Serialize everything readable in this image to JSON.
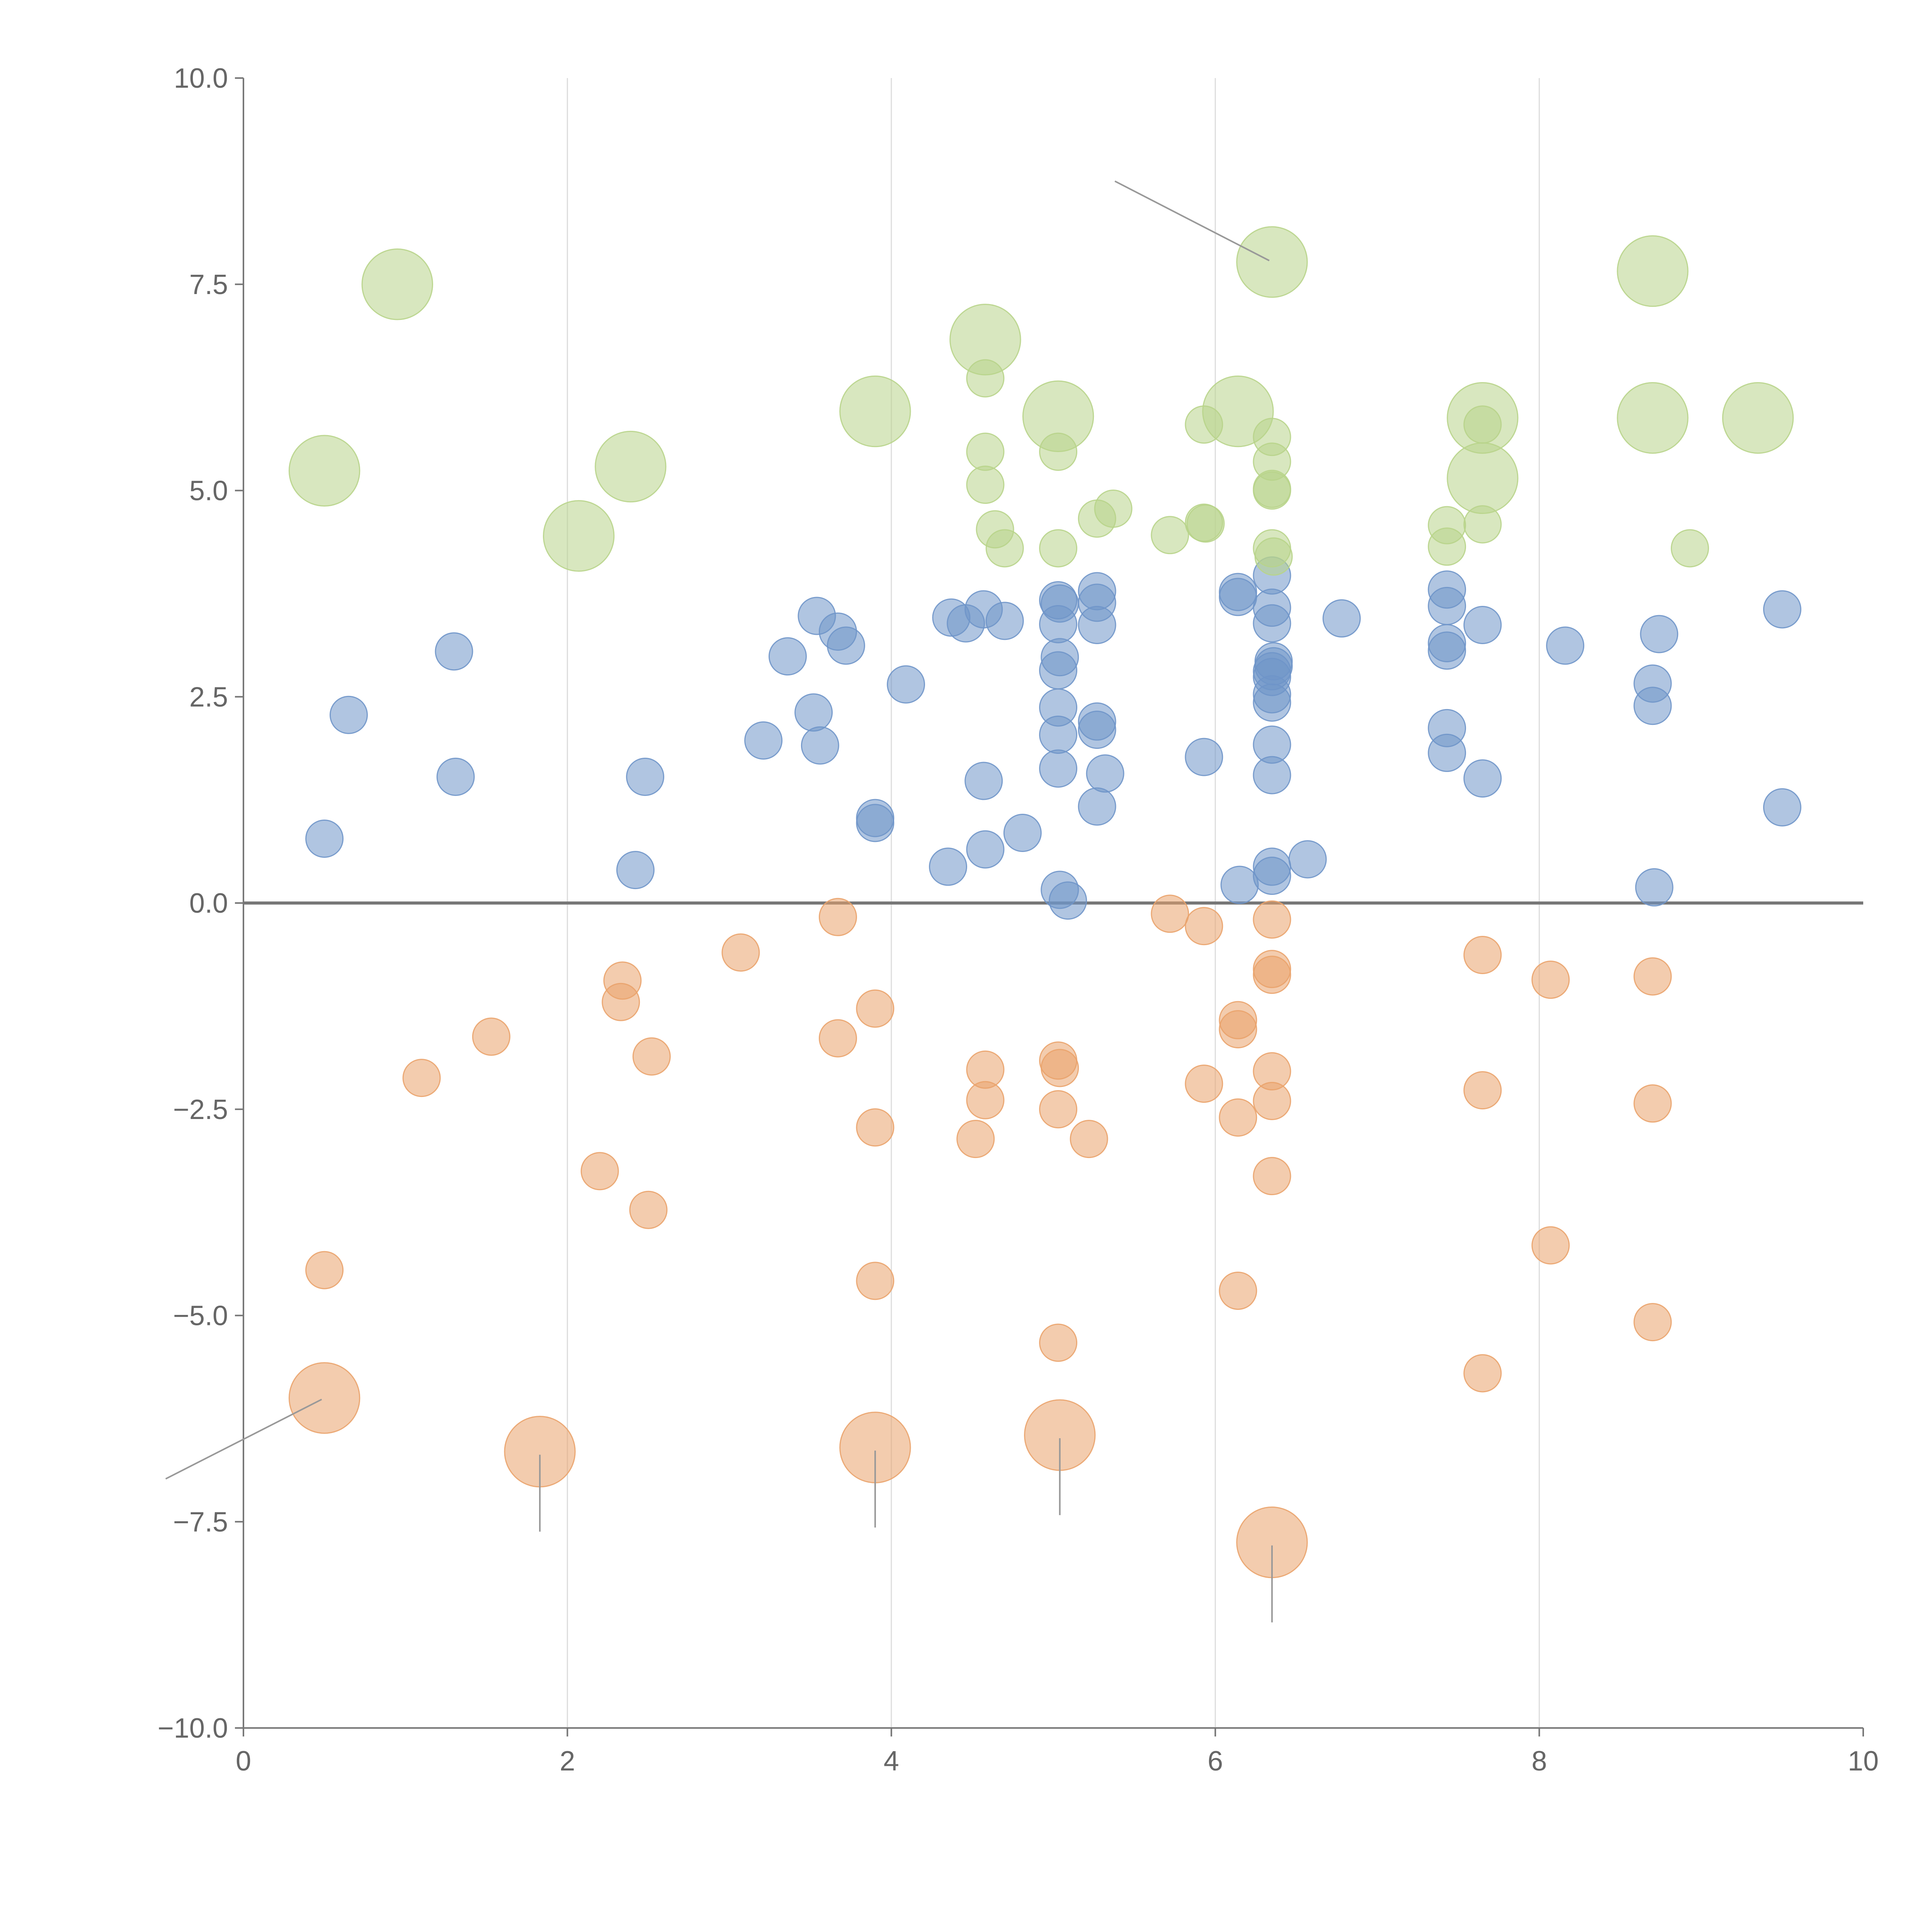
{
  "chart_data": {
    "type": "scatter",
    "title": "",
    "xlabel": "",
    "ylabel": "",
    "xlim": [
      0,
      10
    ],
    "ylim": [
      -10,
      10
    ],
    "x_ticks": [
      0,
      2,
      4,
      6,
      8,
      10
    ],
    "x_tick_labels": [
      "0",
      "2",
      "4",
      "6",
      "8",
      "10"
    ],
    "y_ticks": [
      -10,
      -7.5,
      -5,
      -2.5,
      0,
      2.5,
      5,
      7.5,
      10
    ],
    "y_tick_labels": [
      "−10.0",
      "−7.5",
      "−5.0",
      "−2.5",
      "0.0",
      "2.5",
      "5.0",
      "7.5",
      "10.0"
    ],
    "vertical_grid_at": [
      2,
      4,
      6,
      8
    ],
    "zero_line_at": 0,
    "series": [
      {
        "name": "blue",
        "color": "#6f95c9",
        "size": 1,
        "points": [
          [
            0.5,
            0.78
          ],
          [
            0.65,
            2.28
          ],
          [
            1.3,
            3.05
          ],
          [
            1.31,
            1.53
          ],
          [
            2.42,
            0.4
          ],
          [
            2.48,
            1.53
          ],
          [
            3.21,
            1.97
          ],
          [
            3.36,
            2.99
          ],
          [
            3.52,
            2.31
          ],
          [
            3.54,
            3.48
          ],
          [
            3.56,
            1.91
          ],
          [
            3.67,
            3.29
          ],
          [
            3.72,
            3.12
          ],
          [
            3.9,
            1.03
          ],
          [
            3.9,
            0.97
          ],
          [
            4.09,
            2.65
          ],
          [
            4.35,
            0.44
          ],
          [
            4.37,
            3.46
          ],
          [
            4.46,
            3.39
          ],
          [
            4.57,
            3.56
          ],
          [
            4.57,
            1.48
          ],
          [
            4.58,
            0.65
          ],
          [
            4.7,
            3.42
          ],
          [
            4.81,
            0.85
          ],
          [
            5.03,
            3.67
          ],
          [
            5.04,
            3.63
          ],
          [
            5.03,
            3.38
          ],
          [
            5.04,
            2.98
          ],
          [
            5.03,
            2.82
          ],
          [
            5.03,
            2.37
          ],
          [
            5.03,
            2.04
          ],
          [
            5.03,
            1.63
          ],
          [
            5.04,
            0.16
          ],
          [
            5.09,
            0.03
          ],
          [
            5.27,
            3.78
          ],
          [
            5.27,
            3.64
          ],
          [
            5.27,
            3.37
          ],
          [
            5.27,
            2.2
          ],
          [
            5.27,
            2.1
          ],
          [
            5.32,
            1.57
          ],
          [
            5.27,
            1.17
          ],
          [
            5.93,
            1.77
          ],
          [
            6.14,
            3.77
          ],
          [
            6.14,
            3.71
          ],
          [
            6.15,
            0.22
          ],
          [
            6.35,
            3.97
          ],
          [
            6.35,
            3.58
          ],
          [
            6.35,
            3.39
          ],
          [
            6.36,
            2.93
          ],
          [
            6.36,
            2.87
          ],
          [
            6.35,
            2.81
          ],
          [
            6.35,
            2.74
          ],
          [
            6.35,
            2.53
          ],
          [
            6.35,
            2.43
          ],
          [
            6.35,
            1.92
          ],
          [
            6.35,
            1.55
          ],
          [
            6.35,
            0.44
          ],
          [
            6.35,
            0.33
          ],
          [
            6.57,
            0.53
          ],
          [
            6.78,
            3.45
          ],
          [
            7.43,
            3.8
          ],
          [
            7.43,
            3.6
          ],
          [
            7.43,
            3.15
          ],
          [
            7.43,
            3.06
          ],
          [
            7.43,
            2.12
          ],
          [
            7.43,
            1.82
          ],
          [
            7.65,
            3.37
          ],
          [
            7.65,
            1.51
          ],
          [
            8.16,
            3.12
          ],
          [
            8.7,
            2.66
          ],
          [
            8.7,
            2.39
          ],
          [
            8.71,
            0.19
          ],
          [
            8.74,
            3.26
          ],
          [
            9.5,
            3.56
          ],
          [
            9.5,
            1.16
          ]
        ]
      },
      {
        "name": "orange",
        "color": "#eaa36b",
        "size": 1,
        "points": [
          [
            0.5,
            -4.45
          ],
          [
            1.1,
            -2.12
          ],
          [
            1.53,
            -1.62
          ],
          [
            2.2,
            -3.25
          ],
          [
            2.33,
            -1.2
          ],
          [
            2.34,
            -0.94
          ],
          [
            2.5,
            -3.72
          ],
          [
            2.52,
            -1.86
          ],
          [
            3.07,
            -0.6
          ],
          [
            3.67,
            -0.17
          ],
          [
            3.67,
            -1.64
          ],
          [
            3.9,
            -1.28
          ],
          [
            3.9,
            -2.72
          ],
          [
            3.9,
            -4.58
          ],
          [
            4.52,
            -2.86
          ],
          [
            4.58,
            -2.02
          ],
          [
            4.58,
            -2.39
          ],
          [
            5.03,
            -1.91
          ],
          [
            5.04,
            -2.0
          ],
          [
            5.03,
            -2.5
          ],
          [
            5.03,
            -5.33
          ],
          [
            5.22,
            -2.86
          ],
          [
            5.72,
            -0.13
          ],
          [
            5.93,
            -0.28
          ],
          [
            5.93,
            -2.19
          ],
          [
            6.14,
            -1.42
          ],
          [
            6.14,
            -1.53
          ],
          [
            6.14,
            -2.6
          ],
          [
            6.14,
            -4.7
          ],
          [
            6.35,
            -0.2
          ],
          [
            6.35,
            -0.8
          ],
          [
            6.35,
            -0.87
          ],
          [
            6.35,
            -2.04
          ],
          [
            6.35,
            -2.4
          ],
          [
            6.35,
            -3.31
          ],
          [
            7.65,
            -0.63
          ],
          [
            7.65,
            -2.27
          ],
          [
            7.65,
            -5.7
          ],
          [
            8.07,
            -0.93
          ],
          [
            8.07,
            -4.15
          ],
          [
            8.7,
            -0.89
          ],
          [
            8.7,
            -2.43
          ],
          [
            8.7,
            -5.08
          ]
        ]
      },
      {
        "name": "orange-large",
        "color": "#eaa36b",
        "size": 2,
        "points": [
          [
            0.5,
            -6.0
          ],
          [
            1.83,
            -6.65
          ],
          [
            3.9,
            -6.6
          ],
          [
            5.04,
            -6.45
          ],
          [
            6.35,
            -7.75
          ]
        ]
      },
      {
        "name": "green",
        "color": "#b8d48a",
        "size": 1,
        "points": [
          [
            4.58,
            6.36
          ],
          [
            4.58,
            5.47
          ],
          [
            4.58,
            5.07
          ],
          [
            4.64,
            4.53
          ],
          [
            4.7,
            4.3
          ],
          [
            5.03,
            5.47
          ],
          [
            5.03,
            4.3
          ],
          [
            5.27,
            4.66
          ],
          [
            5.37,
            4.78
          ],
          [
            5.72,
            4.46
          ],
          [
            5.93,
            5.8
          ],
          [
            5.93,
            4.61
          ],
          [
            5.94,
            4.6
          ],
          [
            6.35,
            5.65
          ],
          [
            6.35,
            5.35
          ],
          [
            6.35,
            5.02
          ],
          [
            6.35,
            5.0
          ],
          [
            6.35,
            4.3
          ],
          [
            6.36,
            4.2
          ],
          [
            7.43,
            4.58
          ],
          [
            7.43,
            4.32
          ],
          [
            7.65,
            5.8
          ],
          [
            7.65,
            4.59
          ],
          [
            8.93,
            4.3
          ]
        ]
      },
      {
        "name": "green-large",
        "color": "#b8d48a",
        "size": 2,
        "points": [
          [
            0.5,
            5.24
          ],
          [
            0.95,
            7.5
          ],
          [
            2.07,
            4.45
          ],
          [
            2.39,
            5.29
          ],
          [
            3.9,
            5.96
          ],
          [
            4.58,
            6.83
          ],
          [
            5.03,
            5.9
          ],
          [
            6.14,
            5.96
          ],
          [
            6.35,
            7.77
          ],
          [
            7.65,
            5.88
          ],
          [
            7.65,
            5.15
          ],
          [
            8.7,
            7.66
          ],
          [
            8.7,
            5.88
          ],
          [
            9.35,
            5.88
          ]
        ]
      }
    ]
  }
}
